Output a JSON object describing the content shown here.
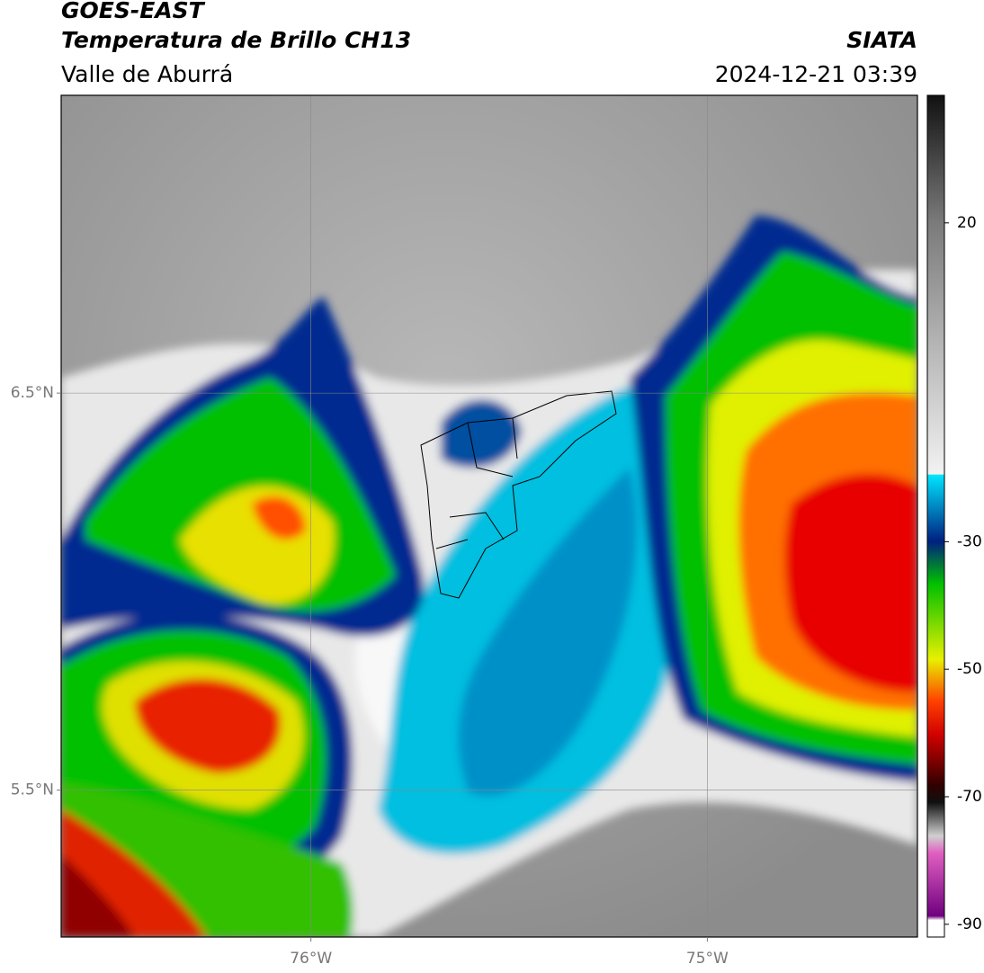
{
  "header": {
    "satellite": "GOES-EAST",
    "product": "Temperatura de Brillo CH13",
    "region": "Valle de Aburrá",
    "agency": "SIATA",
    "datetime": "2024-12-21 03:39"
  },
  "map": {
    "xlim": [
      -76.63,
      -74.47
    ],
    "ylim": [
      5.13,
      7.25
    ],
    "xticks": [
      {
        "value": -76,
        "label": "76°W"
      },
      {
        "value": -75,
        "label": "75°W"
      }
    ],
    "yticks": [
      {
        "value": 6.5,
        "label": "6.5°N"
      },
      {
        "value": 5.5,
        "label": "5.5°N"
      }
    ]
  },
  "colorbar": {
    "lim": [
      -92,
      40
    ],
    "ticks": [
      20,
      -30,
      -50,
      -70,
      -90
    ]
  }
}
